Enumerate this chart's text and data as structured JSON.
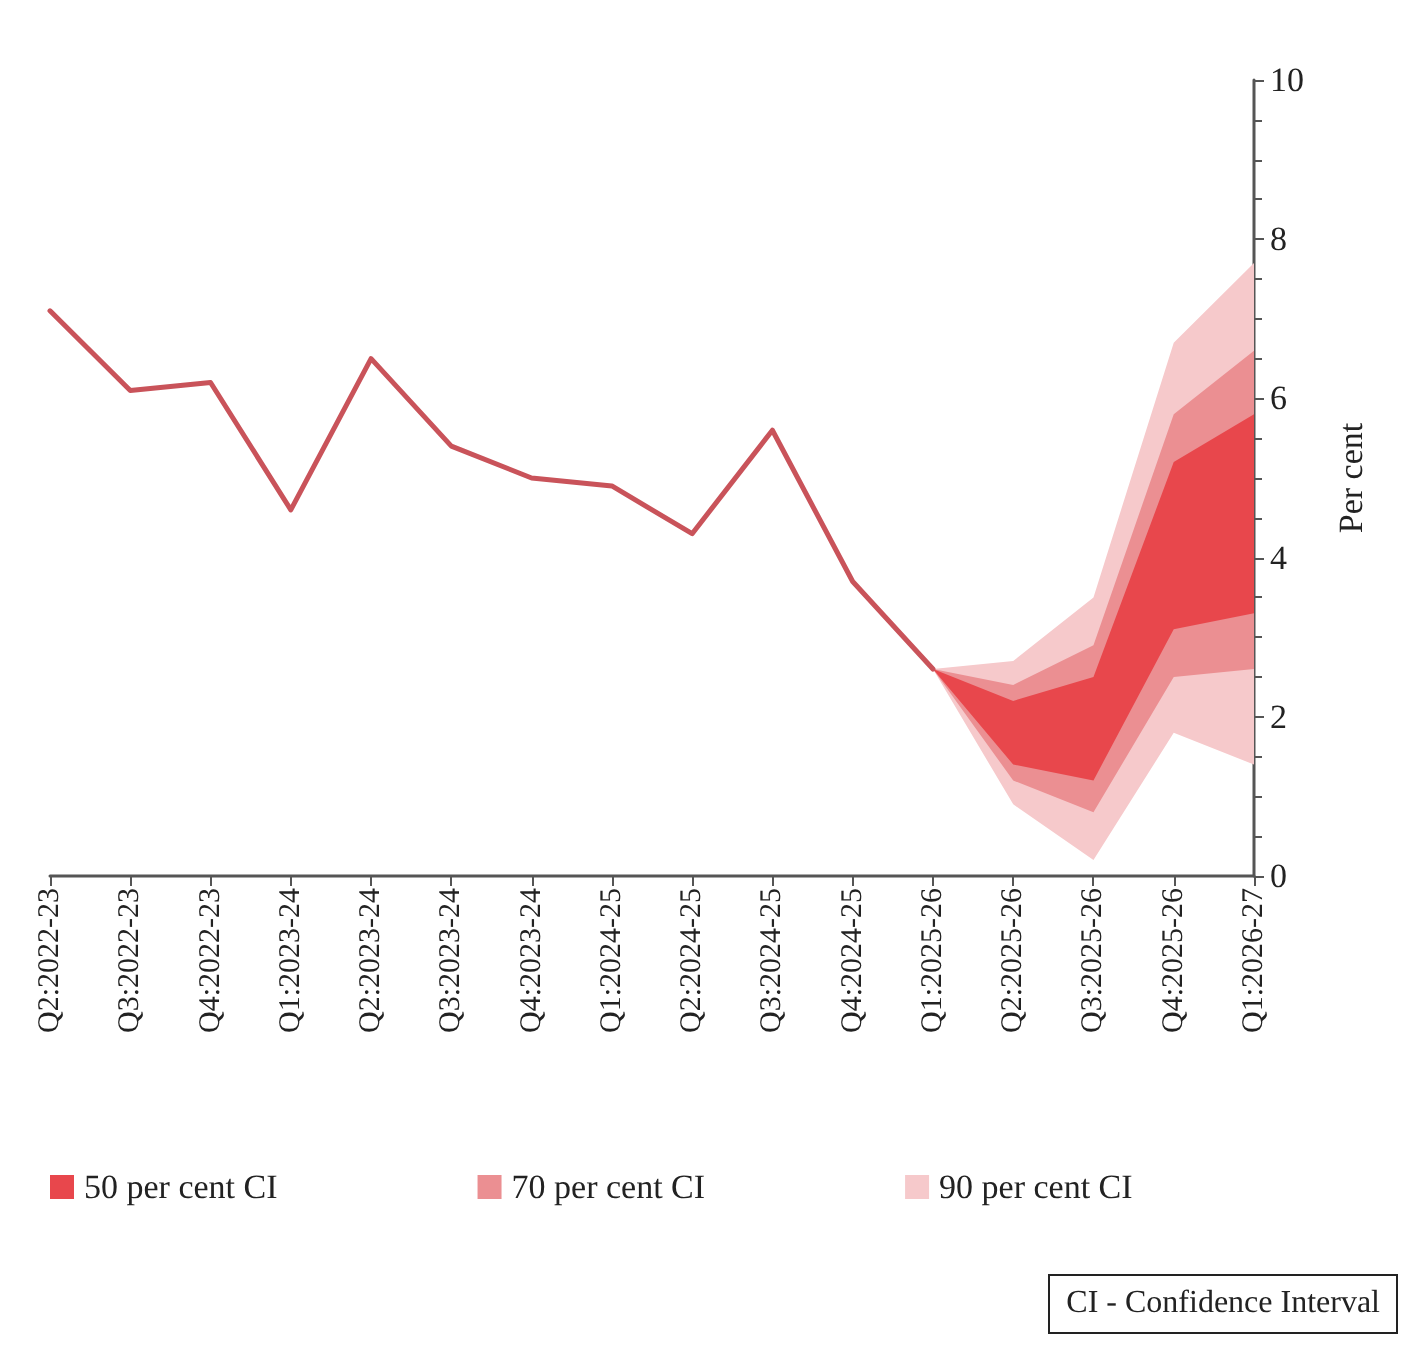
{
  "chart_data": {
    "type": "line",
    "ylabel": "Per cent",
    "categories": [
      "Q2:2022-23",
      "Q3:2022-23",
      "Q4:2022-23",
      "Q1:2023-24",
      "Q2:2023-24",
      "Q3:2023-24",
      "Q4:2023-24",
      "Q1:2024-25",
      "Q2:2024-25",
      "Q3:2024-25",
      "Q4:2024-25",
      "Q1:2025-26",
      "Q2:2025-26",
      "Q3:2025-26",
      "Q4:2025-26",
      "Q1:2026-27"
    ],
    "series": [
      {
        "color": "#c9535a",
        "values": [
          7.1,
          6.1,
          6.2,
          4.6,
          6.5,
          5.4,
          5.0,
          4.9,
          4.3,
          5.6,
          3.7,
          2.6,
          null,
          null,
          null,
          null
        ]
      },
      {
        "type": "area",
        "name": "50 per cent CI",
        "color": "#e8474c",
        "values": [
          null,
          null,
          null,
          null,
          null,
          null,
          null,
          null,
          null,
          null,
          null,
          null,
          null,
          null,
          null,
          null
        ],
        "lower": [
          null,
          null,
          null,
          null,
          null,
          null,
          null,
          null,
          null,
          null,
          null,
          2.6,
          1.4,
          1.2,
          3.1,
          3.3
        ],
        "upper": [
          null,
          null,
          null,
          null,
          null,
          null,
          null,
          null,
          null,
          null,
          null,
          2.6,
          2.2,
          2.5,
          5.2,
          5.8
        ]
      },
      {
        "type": "area",
        "name": "70 per cent CI",
        "color": "#eb8f92",
        "values": [
          null,
          null,
          null,
          null,
          null,
          null,
          null,
          null,
          null,
          null,
          null,
          null,
          null,
          null,
          null,
          null
        ],
        "lower": [
          null,
          null,
          null,
          null,
          null,
          null,
          null,
          null,
          null,
          null,
          null,
          2.6,
          1.2,
          0.8,
          2.5,
          2.6
        ],
        "upper": [
          null,
          null,
          null,
          null,
          null,
          null,
          null,
          null,
          null,
          null,
          null,
          2.6,
          2.4,
          2.9,
          5.8,
          6.6
        ]
      },
      {
        "type": "area",
        "name": "90 per cent CI",
        "color": "#f6c9cb",
        "values": [
          null,
          null,
          null,
          null,
          null,
          null,
          null,
          null,
          null,
          null,
          null,
          null,
          null,
          null,
          null,
          null
        ],
        "lower": [
          null,
          null,
          null,
          null,
          null,
          null,
          null,
          null,
          null,
          null,
          null,
          2.6,
          0.9,
          0.2,
          1.8,
          1.4
        ],
        "upper": [
          null,
          null,
          null,
          null,
          null,
          null,
          null,
          null,
          null,
          null,
          null,
          2.6,
          2.7,
          3.5,
          6.7,
          7.7
        ]
      }
    ],
    "ylim": [
      0,
      10
    ],
    "yticks": [
      0,
      2,
      4,
      6,
      8,
      10
    ],
    "grid": false,
    "legend": "bottom",
    "marker": "none",
    "line_style": "solid",
    "annotations": [
      "CI - Confidence Interval"
    ]
  }
}
